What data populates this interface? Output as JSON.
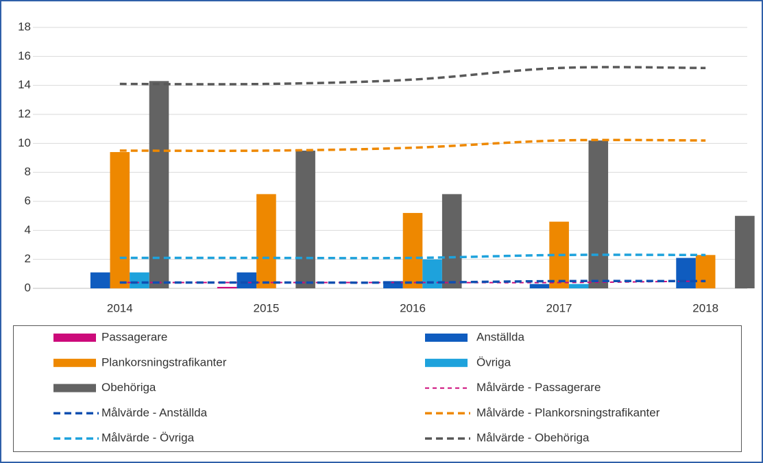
{
  "chart_data": {
    "type": "bar",
    "categories": [
      "2014",
      "2015",
      "2016",
      "2017",
      "2018"
    ],
    "ylim": [
      0,
      18
    ],
    "yticks": [
      0,
      2,
      4,
      6,
      8,
      10,
      12,
      14,
      16,
      18
    ],
    "grid": true,
    "series": [
      {
        "name": "Passagerare",
        "color": "#cc0a7a",
        "values": [
          0,
          0.1,
          0,
          0,
          0
        ]
      },
      {
        "name": "Anställda",
        "color": "#0f5cbf",
        "values": [
          1.1,
          1.1,
          0.5,
          0.3,
          2.1
        ]
      },
      {
        "name": "Plankorsningstrafikanter",
        "color": "#ee8800",
        "values": [
          9.4,
          6.5,
          5.2,
          4.6,
          2.3
        ]
      },
      {
        "name": "Övriga",
        "color": "#1ea2dc",
        "values": [
          1.1,
          0,
          2.0,
          0.3,
          0
        ]
      },
      {
        "name": "Obehöriga",
        "color": "#636363",
        "values": [
          14.3,
          9.5,
          6.5,
          10.2,
          5.0
        ]
      },
      {
        "name": "Målvärde - Passagerare",
        "type": "line",
        "color": "#cc0a7a",
        "values": [
          0.4,
          0.4,
          0.4,
          0.4,
          0.5
        ]
      },
      {
        "name": "Målvärde - Anställda",
        "type": "line",
        "color": "#0f4fb0",
        "values": [
          0.4,
          0.4,
          0.4,
          0.5,
          0.5
        ]
      },
      {
        "name": "Målvärde - Plankorsningstrafikanter",
        "type": "line",
        "color": "#ee8800",
        "values": [
          9.5,
          9.5,
          9.7,
          10.2,
          10.2
        ]
      },
      {
        "name": "Målvärde - Övriga",
        "type": "line",
        "color": "#1ea2dc",
        "values": [
          2.1,
          2.1,
          2.1,
          2.3,
          2.3
        ]
      },
      {
        "name": "Målvärde - Obehöriga",
        "type": "line",
        "color": "#595959",
        "values": [
          14.1,
          14.1,
          14.4,
          15.2,
          15.2
        ]
      }
    ]
  }
}
